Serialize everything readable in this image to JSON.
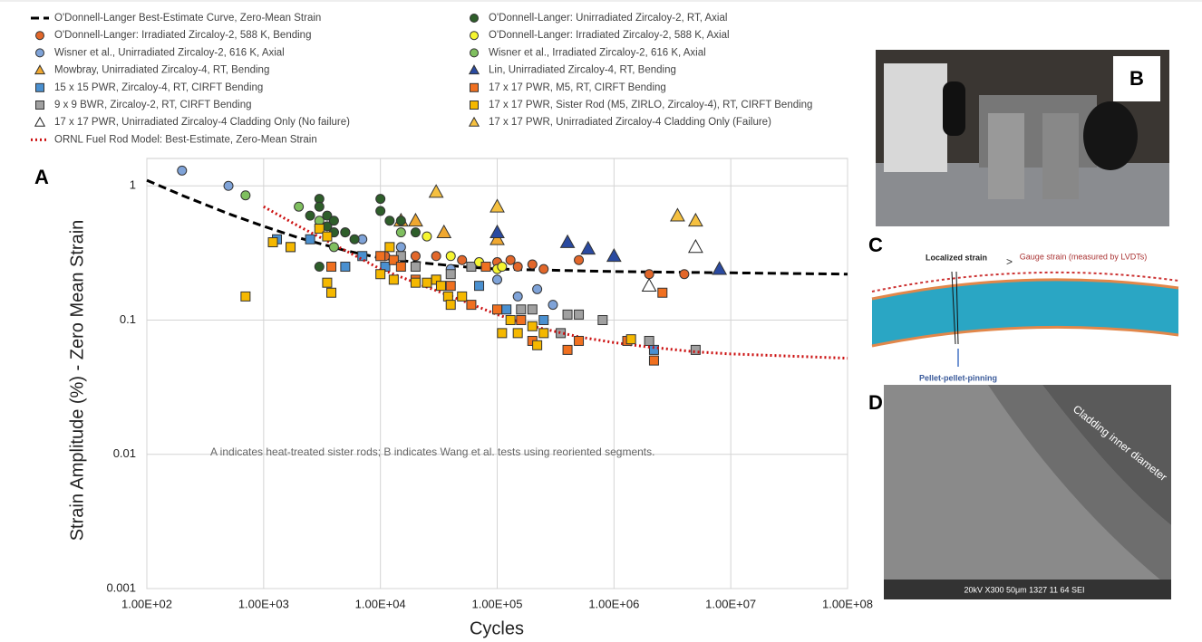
{
  "chart_data": {
    "type": "scatter",
    "x_label": "Cycles",
    "y_label": "Strain Amplitude (%) - Zero Mean Strain",
    "xscale": "log",
    "yscale": "log",
    "grid": true,
    "xlim": [
      100,
      100000000
    ],
    "ylim": [
      0.001,
      1.6
    ],
    "xticks": [
      {
        "value": 100,
        "label": "1.00E+02"
      },
      {
        "value": 1000,
        "label": "1.00E+03"
      },
      {
        "value": 10000,
        "label": "1.00E+04"
      },
      {
        "value": 100000,
        "label": "1.00E+05"
      },
      {
        "value": 1000000,
        "label": "1.00E+06"
      },
      {
        "value": 10000000,
        "label": "1.00E+07"
      },
      {
        "value": 100000000,
        "label": "1.00E+08"
      }
    ],
    "yticks": [
      0.001,
      0.01,
      0.1,
      1
    ],
    "annotation": "A indicates heat-treated sister rods; B indicates Wang et al. tests using reoriented segments.",
    "series": [
      {
        "name": "O'Donnell-Langer Best-Estimate Curve, Zero-Mean Strain",
        "color": "#000000",
        "marker": "dashed",
        "x": [
          100,
          200,
          500,
          1000,
          2000,
          5000,
          10000,
          20000,
          50000,
          100000,
          1000000,
          10000000,
          100000000
        ],
        "values": [
          1.1,
          0.85,
          0.62,
          0.5,
          0.41,
          0.33,
          0.29,
          0.27,
          0.25,
          0.24,
          0.23,
          0.225,
          0.22
        ]
      },
      {
        "name": "O'Donnell-Langer: Irradiated Zircaloy-2, 588 K, Bending",
        "color": "#e2672a",
        "marker": "circle",
        "x": [
          11000,
          13000,
          20000,
          30000,
          50000,
          80000,
          100000,
          130000,
          150000,
          200000,
          250000,
          500000,
          2000000,
          4000000
        ],
        "values": [
          0.3,
          0.28,
          0.3,
          0.3,
          0.28,
          0.25,
          0.27,
          0.28,
          0.25,
          0.26,
          0.24,
          0.28,
          0.22,
          0.22
        ]
      },
      {
        "name": "Wisner et al., Unirradiated Zircaloy-2, 616 K, Axial",
        "color": "#7fa3d8",
        "marker": "circle",
        "x": [
          200,
          500,
          3000,
          4000,
          5000,
          7000,
          15000,
          40000,
          100000,
          150000,
          220000,
          300000
        ],
        "values": [
          1.3,
          1.0,
          0.5,
          0.45,
          0.45,
          0.4,
          0.35,
          0.24,
          0.2,
          0.15,
          0.17,
          0.13
        ]
      },
      {
        "name": "Mowbray, Unirradiated Zircaloy-4, RT, Bending",
        "color": "#f0a830",
        "marker": "triangle",
        "x": [
          15000,
          20000,
          35000,
          100000
        ],
        "values": [
          0.55,
          0.55,
          0.45,
          0.4
        ]
      },
      {
        "name": "15 x 15 PWR, Zircaloy-4, RT, CIRFT Bending",
        "color": "#4a90d0",
        "marker": "square",
        "x": [
          1300,
          1700,
          2500,
          5000,
          7000,
          11000,
          70000,
          120000,
          250000,
          2200000
        ],
        "values": [
          0.4,
          0.35,
          0.4,
          0.25,
          0.3,
          0.25,
          0.18,
          0.12,
          0.1,
          0.06
        ]
      },
      {
        "name": "9 x 9 BWR, Zircaloy-2, RT, CIRFT Bending",
        "color": "#a0a0a0",
        "marker": "square",
        "x": [
          15000,
          20000,
          40000,
          60000,
          160000,
          200000,
          350000,
          400000,
          500000,
          800000,
          2000000,
          5000000
        ],
        "values": [
          0.3,
          0.25,
          0.22,
          0.25,
          0.12,
          0.12,
          0.08,
          0.11,
          0.11,
          0.1,
          0.07,
          0.06
        ]
      },
      {
        "name": "17 x 17 PWR, Unirradiated Zircaloy-4 Cladding Only (No failure)",
        "color": "#ffffff",
        "marker": "triangle",
        "x": [
          2000000,
          5000000
        ],
        "values": [
          0.18,
          0.35
        ]
      },
      {
        "name": "ORNL Fuel Rod Model: Best-Estimate, Zero-Mean Strain",
        "color": "#cc1111",
        "marker": "dotted",
        "x": [
          1000,
          2000,
          5000,
          10000,
          20000,
          50000,
          100000,
          200000,
          500000,
          1000000,
          2000000,
          5000000,
          10000000,
          100000000
        ],
        "values": [
          0.7,
          0.5,
          0.33,
          0.24,
          0.19,
          0.14,
          0.11,
          0.09,
          0.075,
          0.068,
          0.063,
          0.058,
          0.056,
          0.052
        ]
      },
      {
        "name": "O'Donnell-Langer: Unirradiated Zircaloy-2, RT, Axial",
        "color": "#2e5e2a",
        "marker": "circle",
        "x": [
          2500,
          3000,
          3000,
          3000,
          3500,
          3500,
          4000,
          4000,
          5000,
          6000,
          10000,
          10000,
          12000,
          15000,
          20000
        ],
        "values": [
          0.6,
          0.8,
          0.7,
          0.25,
          0.6,
          0.5,
          0.55,
          0.45,
          0.45,
          0.4,
          0.8,
          0.65,
          0.55,
          0.55,
          0.45
        ]
      },
      {
        "name": "O'Donnell-Langer: Irradiated Zircaloy-2, 588 K, Axial",
        "color": "#f5f530",
        "marker": "circle",
        "x": [
          25000,
          40000,
          70000,
          100000,
          110000
        ],
        "values": [
          0.42,
          0.3,
          0.27,
          0.24,
          0.25
        ]
      },
      {
        "name": "Wisner et al., Irradiated Zircaloy-2, 616 K, Axial",
        "color": "#7fbf5f",
        "marker": "circle",
        "x": [
          700,
          2000,
          3000,
          4000,
          15000
        ],
        "values": [
          0.85,
          0.7,
          0.55,
          0.35,
          0.45
        ]
      },
      {
        "name": "Lin, Unirradiated Zircaloy-4, RT, Bending",
        "color": "#2a4aa0",
        "marker": "triangle",
        "x": [
          100000,
          400000,
          600000,
          1000000,
          8000000
        ],
        "values": [
          0.45,
          0.38,
          0.34,
          0.3,
          0.24
        ]
      },
      {
        "name": "17 x 17 PWR, M5, RT, CIRFT Bending",
        "color": "#f07020",
        "marker": "square",
        "x": [
          3800,
          10000,
          13000,
          15000,
          20000,
          30000,
          40000,
          60000,
          80000,
          100000,
          160000,
          200000,
          400000,
          500000,
          1300000,
          2200000,
          2600000
        ],
        "values": [
          0.25,
          0.3,
          0.28,
          0.25,
          0.2,
          0.2,
          0.18,
          0.13,
          0.25,
          0.12,
          0.1,
          0.07,
          0.06,
          0.07,
          0.07,
          0.05,
          0.16
        ]
      },
      {
        "name": "17 x 17 PWR, Sister Rod (M5, ZIRLO, Zircaloy-4), RT, CIRFT Bending",
        "color": "#f5b800",
        "marker": "square",
        "x": [
          700,
          1200,
          1700,
          3000,
          3500,
          3500,
          3800,
          10000,
          12000,
          13000,
          20000,
          25000,
          30000,
          33000,
          38000,
          40000,
          50000,
          110000,
          130000,
          150000,
          200000,
          220000,
          250000,
          1400000
        ],
        "values": [
          0.15,
          0.38,
          0.35,
          0.48,
          0.42,
          0.19,
          0.16,
          0.22,
          0.35,
          0.2,
          0.19,
          0.19,
          0.2,
          0.18,
          0.15,
          0.13,
          0.15,
          0.08,
          0.1,
          0.08,
          0.09,
          0.065,
          0.08,
          0.072
        ]
      },
      {
        "name": "17 x 17 PWR, Unirradiated Zircaloy-4 Cladding Only (Failure)",
        "color": "#f5c040",
        "marker": "triangle",
        "x": [
          30000,
          100000,
          3500000,
          5000000
        ],
        "values": [
          0.9,
          0.7,
          0.6,
          0.55
        ]
      }
    ]
  },
  "panel_a": "A",
  "panel_b": "B",
  "panel_c": "C",
  "panel_d": "D",
  "diagram_c": {
    "localized": "Localized strain",
    "gt": ">",
    "gauge": "Gauge strain (measured by LVDTs)",
    "pinning": "Pellet-pellet-pinning"
  },
  "sem_d": {
    "inner": "Cladding inner diameter",
    "caption": "20kV   X300   50μm   1327   11 64 SEI"
  }
}
